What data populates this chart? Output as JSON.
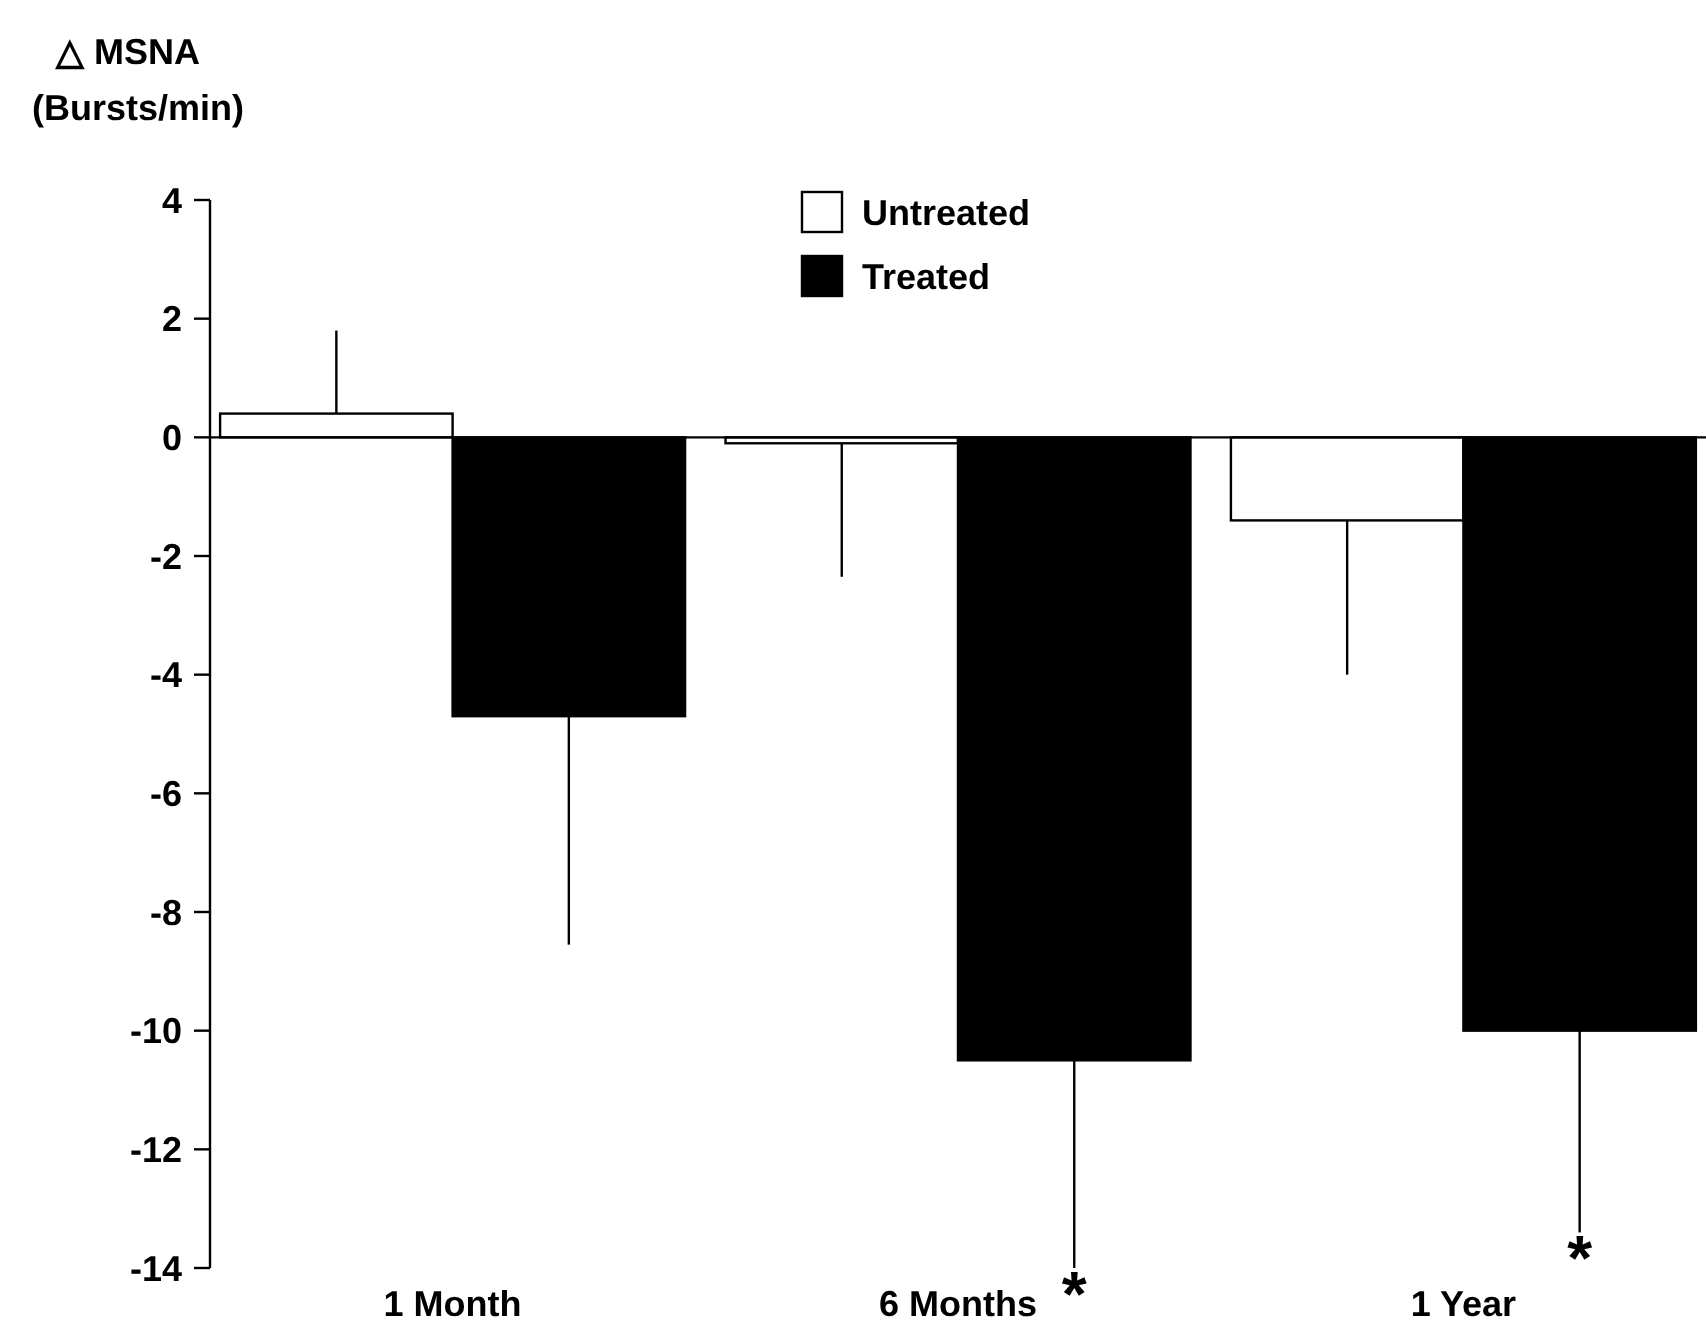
{
  "chart_data": {
    "type": "bar",
    "ylabel": "△ MSNA (Bursts/min)",
    "categories": [
      "1 Month",
      "6 Months",
      "1 Year"
    ],
    "series": [
      {
        "name": "Untreated",
        "color": "#ffffff",
        "values": [
          0.4,
          -0.1,
          -1.4
        ],
        "errors": [
          [
            0.4,
            1.8
          ],
          [
            -2.35,
            -0.1
          ],
          [
            -4.0,
            -1.4
          ]
        ]
      },
      {
        "name": "Treated",
        "color": "#000000",
        "values": [
          -4.7,
          -10.5,
          -10.0
        ],
        "errors": [
          [
            -8.55,
            -4.7
          ],
          [
            -14,
            -10.5
          ],
          [
            -13.4,
            -10.0
          ]
        ]
      }
    ],
    "ylim": [
      -14,
      4
    ],
    "yticks": [
      4,
      2,
      0,
      -2,
      -4,
      -6,
      -8,
      -10,
      -12,
      -14
    ],
    "legend": "top",
    "annotations": [
      "*",
      "*"
    ]
  }
}
